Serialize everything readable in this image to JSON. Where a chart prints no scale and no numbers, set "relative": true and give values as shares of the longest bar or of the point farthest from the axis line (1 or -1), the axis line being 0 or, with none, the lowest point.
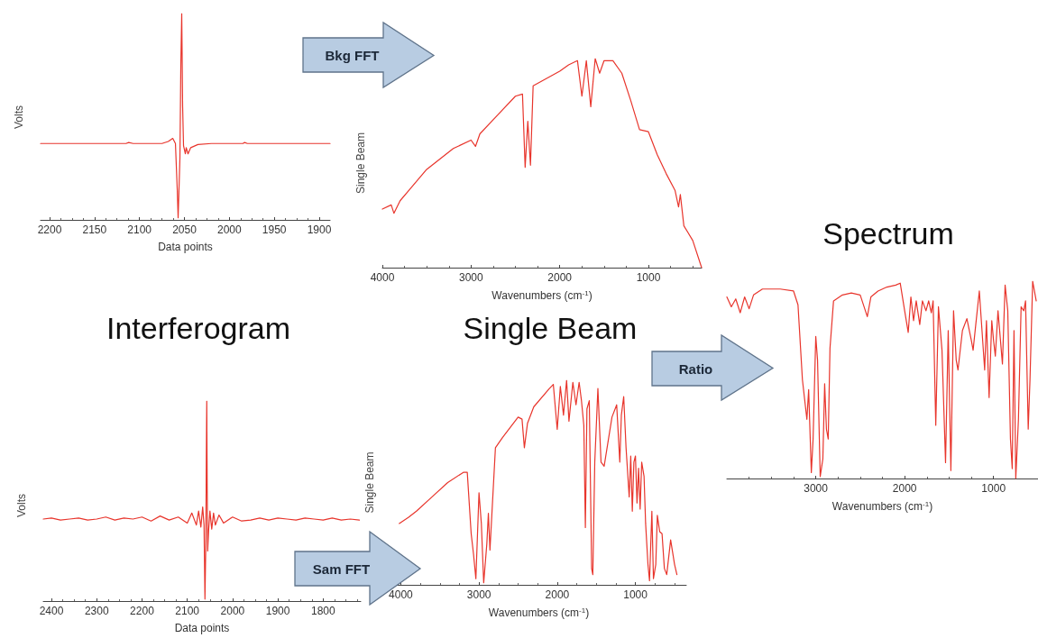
{
  "chart_data": [
    {
      "type": "line",
      "relative": true,
      "ylabel": "Volts",
      "xlabel": "Data points",
      "xlim": [
        2210,
        1888
      ],
      "xticks": [
        2200,
        2150,
        2100,
        2050,
        2000,
        1950,
        1900
      ],
      "x": [
        2210,
        2115,
        2112,
        2107,
        2075,
        2068,
        2063,
        2060,
        2058,
        2057,
        2055,
        2054,
        2053,
        2052,
        2051,
        2049,
        2048,
        2046,
        2043,
        2035,
        2020,
        1985,
        1983,
        1980,
        1888
      ],
      "series": [
        {
          "color": "#e8352c",
          "values": [
            0.37,
            0.37,
            0.375,
            0.37,
            0.37,
            0.38,
            0.395,
            0.37,
            0.15,
            0.01,
            0.3,
            0.75,
            1.0,
            0.55,
            0.36,
            0.32,
            0.35,
            0.32,
            0.35,
            0.365,
            0.37,
            0.37,
            0.375,
            0.37,
            0.37
          ]
        }
      ]
    },
    {
      "type": "line",
      "relative": true,
      "title": "Interferogram",
      "ylabel": "Volts",
      "xlabel": "Data points",
      "xlim": [
        2418,
        1717
      ],
      "xticks": [
        2400,
        2300,
        2200,
        2100,
        2000,
        1900,
        1800
      ],
      "x": [
        2418,
        2400,
        2380,
        2360,
        2340,
        2320,
        2300,
        2280,
        2260,
        2240,
        2220,
        2200,
        2180,
        2160,
        2140,
        2120,
        2100,
        2090,
        2080,
        2075,
        2070,
        2066,
        2063,
        2061,
        2059,
        2058,
        2057,
        2056,
        2055,
        2053,
        2050,
        2046,
        2042,
        2038,
        2030,
        2020,
        2000,
        1980,
        1960,
        1940,
        1920,
        1900,
        1880,
        1860,
        1840,
        1820,
        1800,
        1780,
        1760,
        1740,
        1720
      ],
      "series": [
        {
          "color": "#e8352c",
          "values": [
            0.41,
            0.415,
            0.405,
            0.41,
            0.415,
            0.405,
            0.41,
            0.42,
            0.405,
            0.415,
            0.41,
            0.42,
            0.4,
            0.425,
            0.405,
            0.42,
            0.39,
            0.44,
            0.38,
            0.45,
            0.37,
            0.47,
            0.38,
            0.01,
            0.3,
            0.7,
            1.0,
            0.55,
            0.25,
            0.35,
            0.45,
            0.36,
            0.44,
            0.38,
            0.43,
            0.39,
            0.42,
            0.4,
            0.405,
            0.415,
            0.405,
            0.415,
            0.41,
            0.405,
            0.415,
            0.41,
            0.405,
            0.415,
            0.405,
            0.41,
            0.405
          ]
        }
      ]
    },
    {
      "type": "line",
      "relative": true,
      "ylabel": "Single Beam",
      "xlabel": "Wavenumbers (cm$^{-1}$)",
      "xlim": [
        4000,
        400
      ],
      "xticks": [
        4000,
        3000,
        2000,
        1000
      ],
      "annotations": [
        "Bkg FFT"
      ],
      "x": [
        4000,
        3900,
        3870,
        3800,
        3700,
        3500,
        3200,
        3000,
        2950,
        2900,
        2700,
        2500,
        2420,
        2390,
        2360,
        2330,
        2300,
        2000,
        1900,
        1800,
        1750,
        1700,
        1650,
        1600,
        1550,
        1500,
        1400,
        1300,
        1200,
        1100,
        1000,
        900,
        800,
        700,
        660,
        640,
        600,
        500,
        400
      ],
      "series": [
        {
          "color": "#e8352c",
          "values": [
            0.28,
            0.3,
            0.26,
            0.32,
            0.37,
            0.47,
            0.57,
            0.61,
            0.58,
            0.64,
            0.73,
            0.82,
            0.83,
            0.48,
            0.7,
            0.49,
            0.87,
            0.94,
            0.97,
            0.99,
            0.82,
            0.99,
            0.77,
            1.0,
            0.93,
            0.99,
            0.99,
            0.93,
            0.8,
            0.66,
            0.65,
            0.54,
            0.45,
            0.37,
            0.29,
            0.35,
            0.2,
            0.13,
            0.0
          ]
        }
      ]
    },
    {
      "type": "line",
      "relative": true,
      "title": "Single Beam",
      "ylabel": "Single Beam",
      "xlabel": "Wavenumbers (cm$^{-1}$)",
      "xlim": [
        4120,
        350
      ],
      "xticks": [
        4000,
        3000,
        2000,
        1000
      ],
      "annotations": [
        "Sam FFT"
      ],
      "x": [
        4020,
        3900,
        3800,
        3600,
        3400,
        3200,
        3150,
        3100,
        3070,
        3040,
        3000,
        2970,
        2940,
        2900,
        2880,
        2860,
        2790,
        2700,
        2500,
        2450,
        2420,
        2380,
        2300,
        2100,
        2050,
        2000,
        1960,
        1920,
        1880,
        1850,
        1800,
        1760,
        1720,
        1690,
        1660,
        1640,
        1620,
        1590,
        1560,
        1545,
        1520,
        1480,
        1440,
        1400,
        1300,
        1240,
        1200,
        1180,
        1150,
        1120,
        1080,
        1060,
        1040,
        1020,
        1000,
        980,
        960,
        940,
        920,
        890,
        870,
        840,
        820,
        790,
        770,
        740,
        720,
        690,
        660,
        630,
        600,
        550,
        500,
        470
      ],
      "series": [
        {
          "color": "#e8352c",
          "values": [
            0.3,
            0.33,
            0.36,
            0.43,
            0.5,
            0.55,
            0.55,
            0.25,
            0.15,
            0.03,
            0.45,
            0.3,
            0.01,
            0.2,
            0.35,
            0.17,
            0.67,
            0.72,
            0.82,
            0.81,
            0.67,
            0.79,
            0.87,
            0.96,
            0.98,
            0.76,
            0.97,
            0.83,
            1.0,
            0.8,
            0.99,
            0.88,
            0.99,
            0.9,
            0.78,
            0.28,
            0.86,
            0.9,
            0.08,
            0.05,
            0.6,
            0.96,
            0.6,
            0.58,
            0.82,
            0.88,
            0.6,
            0.83,
            0.92,
            0.67,
            0.43,
            0.63,
            0.36,
            0.6,
            0.63,
            0.4,
            0.57,
            0.37,
            0.6,
            0.53,
            0.3,
            0.1,
            0.02,
            0.36,
            0.03,
            0.1,
            0.34,
            0.26,
            0.25,
            0.08,
            0.05,
            0.22,
            0.1,
            0.05
          ]
        }
      ]
    },
    {
      "type": "line",
      "relative": true,
      "title": "Spectrum",
      "xlabel": "Wavenumbers (cm$^{-1}$)",
      "xlim": [
        4000,
        500
      ],
      "xticks": [
        3000,
        2000,
        1000
      ],
      "annotations": [
        "Ratio"
      ],
      "x": [
        4000,
        3950,
        3900,
        3850,
        3800,
        3750,
        3700,
        3600,
        3400,
        3250,
        3200,
        3150,
        3100,
        3080,
        3050,
        3030,
        3000,
        2980,
        2950,
        2920,
        2900,
        2880,
        2860,
        2840,
        2800,
        2700,
        2600,
        2500,
        2420,
        2380,
        2300,
        2200,
        2100,
        2050,
        2000,
        1960,
        1930,
        1900,
        1870,
        1830,
        1800,
        1760,
        1730,
        1700,
        1680,
        1650,
        1620,
        1580,
        1540,
        1510,
        1480,
        1450,
        1420,
        1400,
        1350,
        1300,
        1250,
        1230,
        1200,
        1160,
        1130,
        1100,
        1080,
        1050,
        1020,
        1000,
        980,
        950,
        900,
        870,
        840,
        810,
        790,
        770,
        750,
        720,
        690,
        660,
        640,
        610,
        590,
        560,
        520
      ],
      "series": [
        {
          "color": "#e8352c",
          "values": [
            0.92,
            0.87,
            0.91,
            0.84,
            0.92,
            0.86,
            0.93,
            0.96,
            0.96,
            0.95,
            0.88,
            0.5,
            0.3,
            0.45,
            0.03,
            0.2,
            0.72,
            0.6,
            0.01,
            0.1,
            0.48,
            0.25,
            0.2,
            0.66,
            0.9,
            0.93,
            0.94,
            0.93,
            0.82,
            0.92,
            0.95,
            0.97,
            0.98,
            0.99,
            0.85,
            0.74,
            0.92,
            0.8,
            0.9,
            0.78,
            0.9,
            0.85,
            0.9,
            0.84,
            0.9,
            0.27,
            0.87,
            0.65,
            0.08,
            0.75,
            0.04,
            0.85,
            0.6,
            0.55,
            0.75,
            0.81,
            0.7,
            0.65,
            0.78,
            0.95,
            0.75,
            0.55,
            0.8,
            0.41,
            0.8,
            0.7,
            0.62,
            0.85,
            0.58,
            0.98,
            0.85,
            0.2,
            0.05,
            0.75,
            0.0,
            0.3,
            0.87,
            0.85,
            0.9,
            0.25,
            0.5,
            1.0,
            0.9
          ]
        }
      ]
    }
  ]
}
